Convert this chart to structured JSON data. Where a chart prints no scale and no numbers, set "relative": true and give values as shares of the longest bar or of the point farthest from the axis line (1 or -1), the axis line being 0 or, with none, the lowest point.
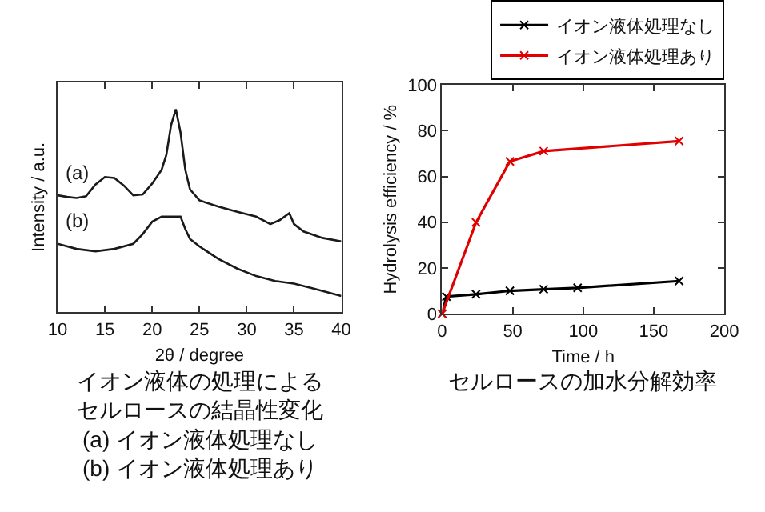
{
  "chart_data": [
    {
      "type": "line",
      "relative": true,
      "title": "イオン液体の処理によるセルロースの結晶性変化",
      "annotations": [
        "(a) イオン液体処理なし",
        "(b) イオン液体処理あり"
      ],
      "xlabel": "2θ / degree",
      "ylabel": "Intensity / a.u.",
      "xlim": [
        10,
        40
      ],
      "xticks": [
        10,
        15,
        20,
        25,
        30,
        35,
        40
      ],
      "legend": false,
      "series": [
        {
          "name": "(a)",
          "color": "#1a1a1a",
          "x": [
            10,
            11,
            12,
            13,
            14,
            15,
            16,
            17,
            18,
            19,
            20,
            21,
            21.5,
            22,
            22.5,
            23,
            23.5,
            24,
            25,
            27,
            29,
            31,
            32.5,
            33.5,
            34.5,
            35,
            36,
            38,
            40
          ],
          "values": [
            0.576,
            0.568,
            0.563,
            0.571,
            0.629,
            0.666,
            0.661,
            0.624,
            0.576,
            0.58,
            0.634,
            0.702,
            0.776,
            0.922,
            1,
            0.885,
            0.702,
            0.605,
            0.551,
            0.52,
            0.495,
            0.471,
            0.434,
            0.454,
            0.488,
            0.434,
            0.398,
            0.366,
            0.349
          ]
        },
        {
          "name": "(b)",
          "color": "#1a1a1a",
          "x": [
            10,
            12,
            14,
            16,
            18,
            19,
            20,
            21,
            22,
            23,
            23.5,
            24,
            25,
            27,
            29,
            31,
            33,
            35,
            37,
            40
          ],
          "values": [
            0.337,
            0.312,
            0.3,
            0.312,
            0.337,
            0.385,
            0.446,
            0.471,
            0.471,
            0.471,
            0.41,
            0.361,
            0.324,
            0.263,
            0.215,
            0.178,
            0.154,
            0.141,
            0.117,
            0.08
          ]
        }
      ]
    },
    {
      "type": "line",
      "title": "セルロースの加水分解効率",
      "xlabel": "Time / h",
      "ylabel": "Hydrolysis efficiency / %",
      "xlim": [
        0,
        200
      ],
      "xticks": [
        0,
        50,
        100,
        150,
        200
      ],
      "ylim": [
        0,
        100
      ],
      "yticks": [
        0,
        20,
        40,
        60,
        80,
        100
      ],
      "legend": "top right",
      "marker": "cross",
      "series": [
        {
          "name": "イオン液体処理なし",
          "color": "#000000",
          "x": [
            0,
            3,
            24,
            48,
            72,
            96,
            168
          ],
          "values": [
            0,
            7.5,
            8.5,
            10,
            10.7,
            11.3,
            14.3
          ]
        },
        {
          "name": "イオン液体処理あり",
          "color": "#e00000",
          "x": [
            0,
            24,
            48,
            72,
            168
          ],
          "values": [
            0,
            39.9,
            66.6,
            71.1,
            75.5
          ]
        }
      ]
    }
  ]
}
